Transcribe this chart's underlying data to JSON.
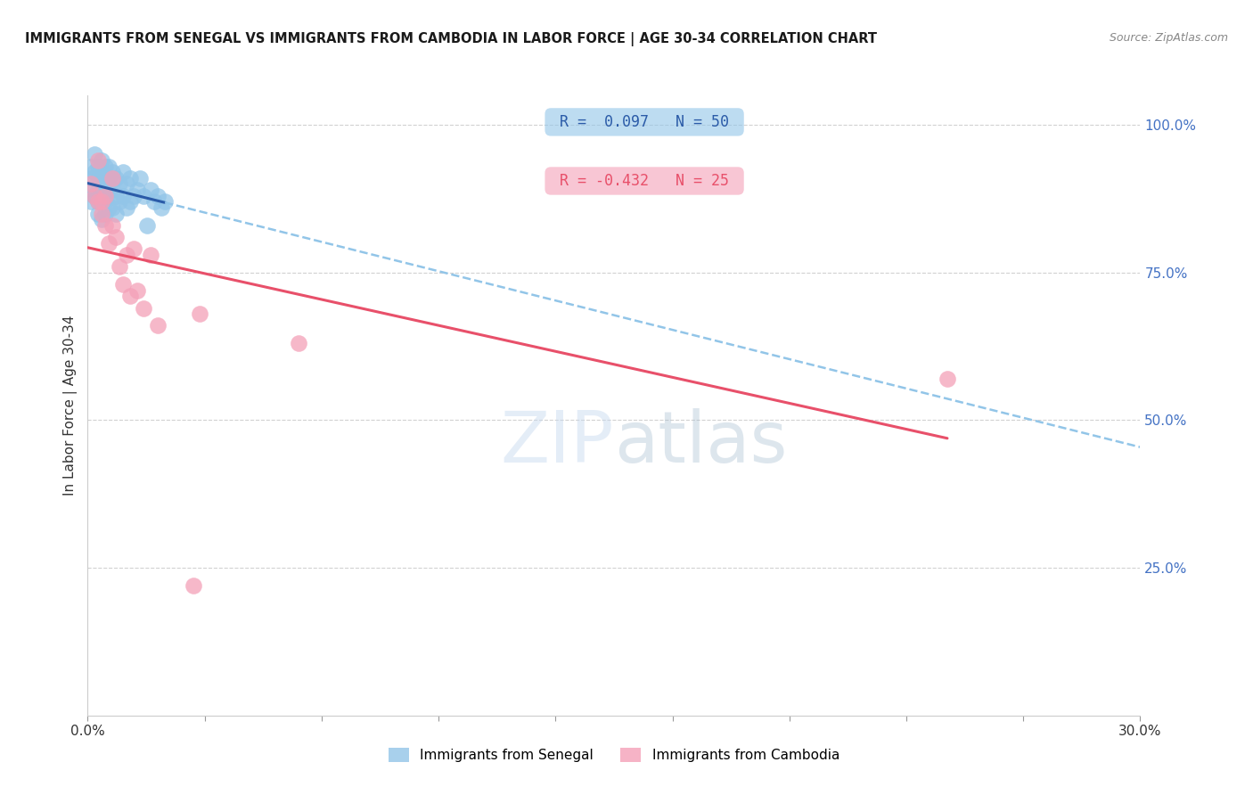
{
  "title": "IMMIGRANTS FROM SENEGAL VS IMMIGRANTS FROM CAMBODIA IN LABOR FORCE | AGE 30-34 CORRELATION CHART",
  "source": "Source: ZipAtlas.com",
  "ylabel": "In Labor Force | Age 30-34",
  "xlim": [
    0.0,
    0.3
  ],
  "ylim": [
    0.0,
    1.05
  ],
  "senegal_R": 0.097,
  "senegal_N": 50,
  "cambodia_R": -0.432,
  "cambodia_N": 25,
  "senegal_color": "#92C5E8",
  "cambodia_color": "#F4A0B8",
  "senegal_line_color": "#2B5BA8",
  "cambodia_line_color": "#E8506A",
  "dashed_line_color": "#92C5E8",
  "background_color": "#FFFFFF",
  "senegal_x": [
    0.001,
    0.001,
    0.001,
    0.002,
    0.002,
    0.002,
    0.002,
    0.003,
    0.003,
    0.003,
    0.003,
    0.003,
    0.004,
    0.004,
    0.004,
    0.004,
    0.004,
    0.005,
    0.005,
    0.005,
    0.005,
    0.005,
    0.006,
    0.006,
    0.006,
    0.006,
    0.007,
    0.007,
    0.007,
    0.008,
    0.008,
    0.008,
    0.009,
    0.009,
    0.01,
    0.01,
    0.011,
    0.011,
    0.012,
    0.012,
    0.013,
    0.014,
    0.015,
    0.016,
    0.017,
    0.018,
    0.019,
    0.02,
    0.021,
    0.022
  ],
  "senegal_y": [
    0.91,
    0.87,
    0.93,
    0.92,
    0.89,
    0.95,
    0.88,
    0.93,
    0.91,
    0.89,
    0.87,
    0.85,
    0.94,
    0.91,
    0.89,
    0.87,
    0.84,
    0.93,
    0.91,
    0.89,
    0.87,
    0.85,
    0.93,
    0.91,
    0.89,
    0.86,
    0.92,
    0.89,
    0.86,
    0.91,
    0.88,
    0.85,
    0.9,
    0.87,
    0.92,
    0.88,
    0.9,
    0.86,
    0.91,
    0.87,
    0.88,
    0.89,
    0.91,
    0.88,
    0.83,
    0.89,
    0.87,
    0.88,
    0.86,
    0.87
  ],
  "cambodia_x": [
    0.001,
    0.002,
    0.003,
    0.003,
    0.004,
    0.004,
    0.005,
    0.005,
    0.006,
    0.007,
    0.007,
    0.008,
    0.009,
    0.01,
    0.011,
    0.012,
    0.013,
    0.014,
    0.016,
    0.018,
    0.02,
    0.032,
    0.06,
    0.245,
    0.03
  ],
  "cambodia_y": [
    0.9,
    0.88,
    0.87,
    0.94,
    0.85,
    0.87,
    0.83,
    0.88,
    0.8,
    0.91,
    0.83,
    0.81,
    0.76,
    0.73,
    0.78,
    0.71,
    0.79,
    0.72,
    0.69,
    0.78,
    0.66,
    0.68,
    0.63,
    0.57,
    0.22
  ]
}
